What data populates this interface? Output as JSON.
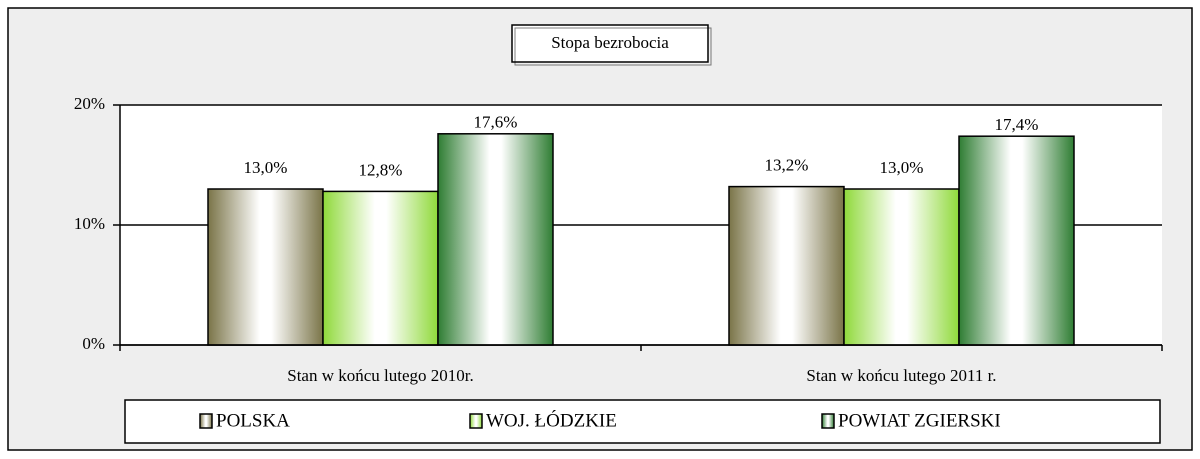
{
  "chart_data": {
    "type": "bar",
    "title": "Stopa bezrobocia",
    "categories": [
      "Stan w końcu lutego 2010r.",
      "Stan w końcu lutego 2011 r."
    ],
    "series": [
      {
        "name": "POLSKA",
        "color": "#7a7448",
        "values": [
          13.0,
          13.2
        ],
        "value_labels": [
          "13,0%",
          "13,2%"
        ]
      },
      {
        "name": "WOJ. ŁÓDZKIE",
        "color": "#8fd93a",
        "values": [
          12.8,
          13.0
        ],
        "value_labels": [
          "12,8%",
          "13,0%"
        ]
      },
      {
        "name": "POWIAT ZGIERSKI",
        "color": "#2f7d33",
        "values": [
          17.6,
          17.4
        ],
        "value_labels": [
          "17,6%",
          "17,4%"
        ]
      }
    ],
    "ylim": [
      0,
      20
    ],
    "yticks": [
      {
        "value": 0,
        "label": "0%"
      },
      {
        "value": 10,
        "label": "10%"
      },
      {
        "value": 20,
        "label": "20%"
      }
    ],
    "grid": true,
    "legend": "bottom"
  }
}
